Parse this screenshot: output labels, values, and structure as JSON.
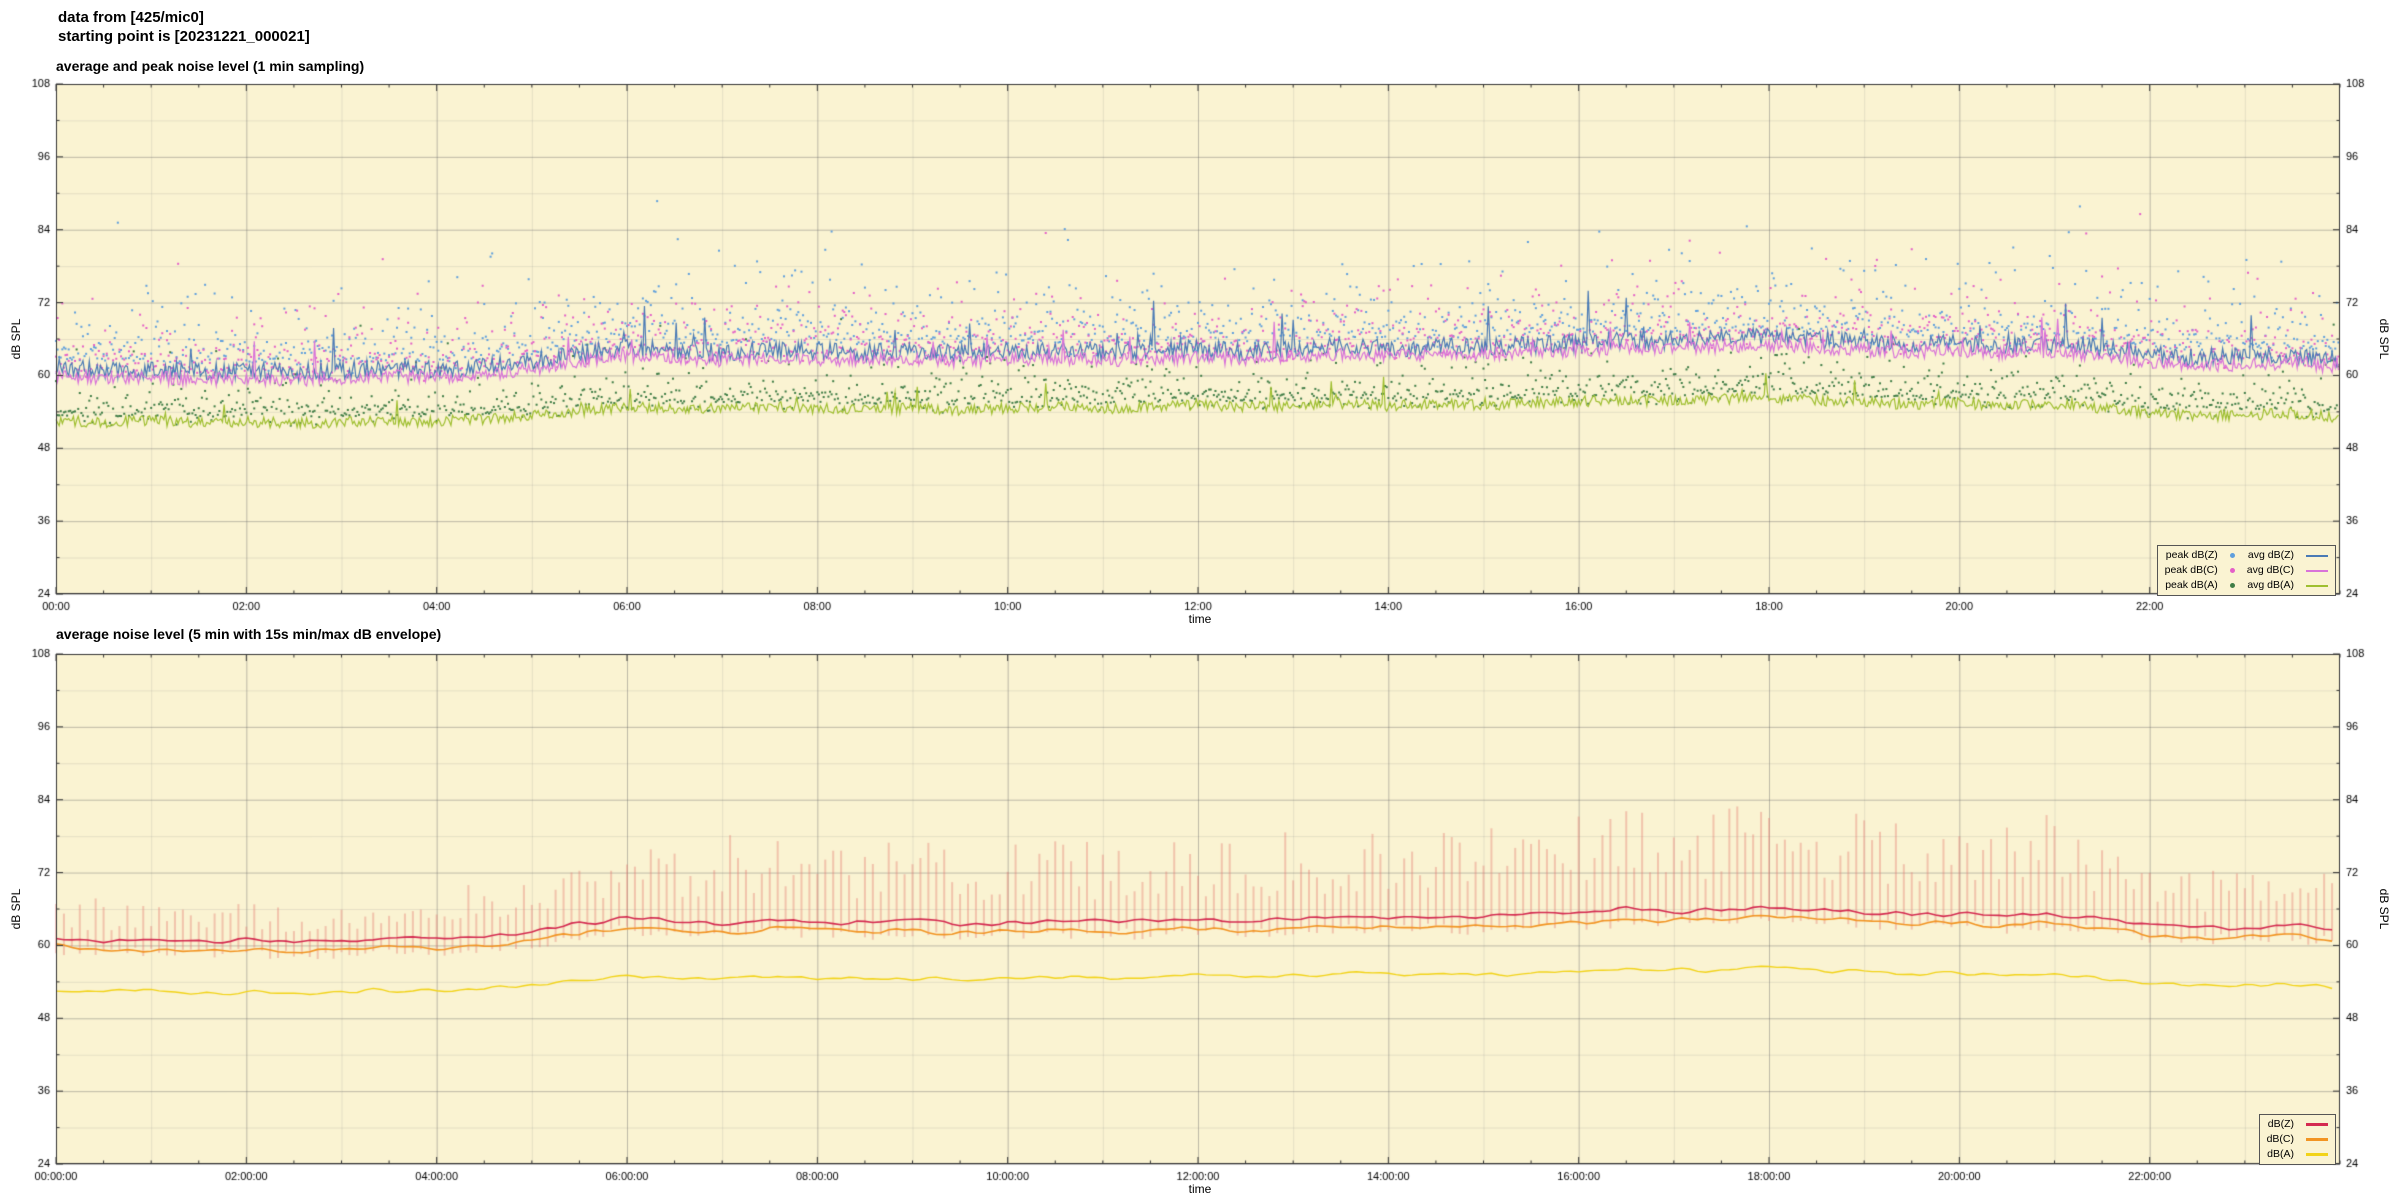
{
  "header": {
    "line1": "data from [425/mic0]",
    "line2": "starting point is [20231221_000021]"
  },
  "colors": {
    "plot_background": "#faf3d2",
    "grid_major": "rgba(110,110,110,0.55)",
    "grid_minor": "rgba(140,140,140,0.18)",
    "border": "#333333",
    "text": "#000000"
  },
  "chart_data": [
    {
      "type": "line",
      "title": "average and peak noise level (1 min sampling)",
      "xlabel": "time",
      "ylabel": "dB SPL",
      "ylabel_right": "dB SPL",
      "x_hours": [
        0,
        24
      ],
      "ylim": [
        24,
        108
      ],
      "yticks": [
        24,
        36,
        48,
        60,
        72,
        84,
        96,
        108
      ],
      "y_minor_step": 6,
      "x_minor_step_hours": 0.5,
      "xtick_hours": [
        0,
        2,
        4,
        6,
        8,
        10,
        12,
        14,
        16,
        18,
        20,
        22
      ],
      "xtick_labels": [
        "00:00",
        "02:00",
        "04:00",
        "06:00",
        "08:00",
        "10:00",
        "12:00",
        "14:00",
        "16:00",
        "18:00",
        "20:00",
        "22:00"
      ],
      "sampling_minutes": 1,
      "anchor_step_hours": 0.5,
      "series": [
        {
          "name": "peak dB(Z)",
          "kind": "scatter",
          "color": "#5f9fdd",
          "base": "avg dB(Z)",
          "min_offset": 1.2,
          "spread": 3.0,
          "spike_p": 0.05,
          "spike_amp": 12
        },
        {
          "name": "peak dB(C)",
          "kind": "scatter",
          "color": "#e45fc8",
          "base": "avg dB(C)",
          "min_offset": 1.0,
          "spread": 2.8,
          "spike_p": 0.05,
          "spike_amp": 11
        },
        {
          "name": "peak dB(A)",
          "kind": "scatter",
          "color": "#3f7d46",
          "base": "avg dB(A)",
          "min_offset": 0.8,
          "spread": 1.8,
          "spike_p": 0.05,
          "spike_amp": 9
        },
        {
          "name": "avg dB(Z)",
          "kind": "line",
          "color": "#4a7ab5",
          "width": 1.2,
          "noise": 1.5,
          "spike_p": 0.03,
          "spike_amp": 8,
          "anchors": [
            61.3,
            60.8,
            61.0,
            60.6,
            60.9,
            60.5,
            60.8,
            61.2,
            60.9,
            61.4,
            62.3,
            63.6,
            64.6,
            64.0,
            63.8,
            64.3,
            64.0,
            63.8,
            64.1,
            63.6,
            63.9,
            64.2,
            63.8,
            64.0,
            64.4,
            63.9,
            64.3,
            64.8,
            64.4,
            64.9,
            64.7,
            65.0,
            65.4,
            65.9,
            65.7,
            66.0,
            66.4,
            65.9,
            65.5,
            65.1,
            65.4,
            64.9,
            65.3,
            64.4,
            63.4,
            62.9,
            63.1,
            63.4,
            62.4
          ]
        },
        {
          "name": "avg dB(C)",
          "kind": "line",
          "color": "#d973d9",
          "width": 1.2,
          "noise": 1.1,
          "spike_p": 0.02,
          "spike_amp": 6,
          "anchors": [
            60.0,
            59.5,
            59.7,
            59.3,
            59.6,
            59.2,
            59.5,
            59.9,
            59.6,
            60.1,
            61.0,
            62.3,
            63.3,
            62.7,
            62.5,
            63.0,
            62.7,
            62.5,
            62.8,
            62.3,
            62.6,
            62.9,
            62.5,
            62.7,
            63.1,
            62.6,
            63.0,
            63.5,
            63.1,
            63.6,
            63.4,
            63.7,
            64.1,
            64.6,
            64.4,
            64.7,
            65.1,
            64.6,
            64.2,
            63.8,
            64.1,
            63.6,
            64.0,
            63.1,
            62.1,
            61.6,
            61.8,
            62.1,
            61.1
          ]
        },
        {
          "name": "avg dB(A)",
          "kind": "line",
          "color": "#9fbf30",
          "width": 1.2,
          "noise": 0.9,
          "spike_p": 0.02,
          "spike_amp": 5,
          "anchors": [
            52.6,
            52.3,
            52.5,
            52.2,
            52.4,
            52.1,
            52.3,
            52.6,
            52.4,
            52.8,
            53.4,
            54.2,
            54.8,
            54.5,
            54.6,
            54.9,
            54.6,
            54.4,
            54.7,
            54.3,
            54.6,
            54.9,
            54.5,
            54.8,
            55.2,
            54.8,
            55.0,
            55.4,
            55.0,
            55.3,
            55.1,
            55.4,
            55.7,
            56.0,
            55.8,
            56.1,
            56.4,
            55.9,
            55.6,
            55.2,
            55.5,
            55.0,
            55.3,
            54.6,
            53.8,
            53.3,
            53.5,
            53.8,
            53.0
          ]
        }
      ],
      "legend": {
        "columns": [
          [
            "peak dB(Z)",
            "peak dB(C)",
            "peak dB(A)"
          ],
          [
            "avg dB(Z)",
            "avg dB(C)",
            "avg dB(A)"
          ]
        ]
      }
    },
    {
      "type": "line",
      "title": "average noise level (5 min with 15s min/max dB envelope)",
      "xlabel": "time",
      "ylabel": "dB SPL",
      "ylabel_right": "dB SPL",
      "x_hours": [
        0,
        24
      ],
      "ylim": [
        24,
        108
      ],
      "yticks": [
        24,
        36,
        48,
        60,
        72,
        84,
        96,
        108
      ],
      "y_minor_step": 6,
      "x_minor_step_hours": 0.5,
      "xtick_hours": [
        0,
        2,
        4,
        6,
        8,
        10,
        12,
        14,
        16,
        18,
        20,
        22
      ],
      "xtick_labels": [
        "00:00:00",
        "02:00:00",
        "04:00:00",
        "06:00:00",
        "08:00:00",
        "10:00:00",
        "12:00:00",
        "14:00:00",
        "16:00:00",
        "18:00:00",
        "20:00:00",
        "22:00:00"
      ],
      "sampling_minutes": 5,
      "anchor_step_hours": 0.5,
      "envelope": {
        "series": "dB(Z)",
        "color": "rgba(231,124,115,0.40)",
        "min_offset": 2.0,
        "max_offset_anchors": [
          5.5,
          5.0,
          5.5,
          5.0,
          5.5,
          5.0,
          5.5,
          6.0,
          5.5,
          6.0,
          7.0,
          9.0,
          11.0,
          11.5,
          11.0,
          12.0,
          11.5,
          11.0,
          12.0,
          11.5,
          12.0,
          12.5,
          12.0,
          11.5,
          12.5,
          12.0,
          12.5,
          13.0,
          12.5,
          13.0,
          13.0,
          13.5,
          14.0,
          14.5,
          14.0,
          14.5,
          15.0,
          14.5,
          14.0,
          13.5,
          13.5,
          13.0,
          12.5,
          11.0,
          9.0,
          8.0,
          8.5,
          9.0,
          7.5
        ]
      },
      "series": [
        {
          "name": "dB(A)",
          "kind": "line",
          "color": "#f2d318",
          "width": 1.4,
          "noise": 0.5,
          "spike_p": 0.0,
          "spike_amp": 0,
          "anchors": [
            52.6,
            52.3,
            52.5,
            52.2,
            52.4,
            52.1,
            52.3,
            52.6,
            52.4,
            52.8,
            53.4,
            54.2,
            54.8,
            54.5,
            54.6,
            54.9,
            54.6,
            54.4,
            54.7,
            54.3,
            54.6,
            54.9,
            54.5,
            54.8,
            55.2,
            54.8,
            55.0,
            55.4,
            55.0,
            55.3,
            55.1,
            55.4,
            55.7,
            56.0,
            55.8,
            56.1,
            56.4,
            55.9,
            55.6,
            55.2,
            55.5,
            55.0,
            55.3,
            54.6,
            53.8,
            53.3,
            53.5,
            53.8,
            53.0
          ]
        },
        {
          "name": "dB(C)",
          "kind": "line",
          "color": "#f29422",
          "width": 1.6,
          "noise": 0.6,
          "spike_p": 0.0,
          "spike_amp": 0,
          "anchors": [
            59.7,
            59.2,
            59.4,
            59.0,
            59.3,
            58.9,
            59.2,
            59.6,
            59.3,
            59.8,
            60.7,
            62.0,
            63.0,
            62.4,
            62.2,
            62.7,
            62.4,
            62.2,
            62.5,
            62.0,
            62.3,
            62.6,
            62.2,
            62.4,
            62.8,
            62.3,
            62.7,
            63.2,
            62.8,
            63.3,
            63.1,
            63.4,
            63.8,
            64.3,
            64.1,
            64.4,
            64.8,
            64.3,
            63.9,
            63.5,
            63.8,
            63.3,
            63.7,
            62.8,
            61.8,
            61.3,
            61.5,
            61.8,
            60.8
          ]
        },
        {
          "name": "dB(Z)",
          "kind": "line",
          "color": "#d42a50",
          "width": 1.6,
          "noise": 0.6,
          "spike_p": 0.0,
          "spike_amp": 0,
          "anchors": [
            61.3,
            60.8,
            61.0,
            60.6,
            60.9,
            60.5,
            60.8,
            61.2,
            60.9,
            61.4,
            62.3,
            63.6,
            64.6,
            64.0,
            63.8,
            64.3,
            64.0,
            63.8,
            64.1,
            63.6,
            63.9,
            64.2,
            63.8,
            64.0,
            64.4,
            63.9,
            64.3,
            64.8,
            64.4,
            64.9,
            64.7,
            65.0,
            65.4,
            65.9,
            65.7,
            66.0,
            66.4,
            65.9,
            65.5,
            65.1,
            65.4,
            64.9,
            65.3,
            64.4,
            63.4,
            62.9,
            63.1,
            63.4,
            62.4
          ]
        }
      ],
      "legend": {
        "columns": [
          [
            "dB(Z)",
            "dB(C)",
            "dB(A)"
          ]
        ]
      }
    }
  ]
}
